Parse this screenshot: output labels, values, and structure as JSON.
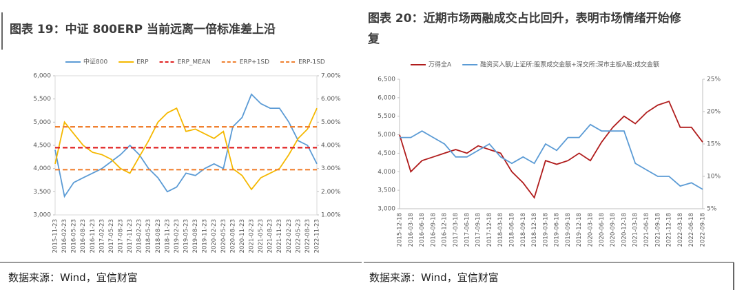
{
  "chart_data": [
    {
      "type": "line",
      "title": "图表 19：中证 800ERP 当前远离一倍标准差上沿",
      "source": "数据来源：Wind，宜信财富",
      "categories": [
        "2015-11-23",
        "2016-02-23",
        "2016-05-23",
        "2016-08-23",
        "2016-11-23",
        "2017-02-23",
        "2017-05-23",
        "2017-08-23",
        "2017-11-23",
        "2018-02-23",
        "2018-05-23",
        "2018-08-23",
        "2018-11-23",
        "2019-02-23",
        "2019-05-23",
        "2019-08-23",
        "2019-11-23",
        "2020-02-23",
        "2020-05-23",
        "2020-08-23",
        "2020-11-23",
        "2021-02-23",
        "2021-05-23",
        "2021-08-23",
        "2021-11-23",
        "2022-02-23",
        "2022-05-23",
        "2022-08-23",
        "2022-11-23"
      ],
      "ylim": [
        3000,
        6000
      ],
      "yticks": [
        {
          "value": 3000,
          "label": "3,000"
        },
        {
          "value": 3500,
          "label": "3,500"
        },
        {
          "value": 4000,
          "label": "4,000"
        },
        {
          "value": 4500,
          "label": "4,500"
        },
        {
          "value": 5000,
          "label": "5,000"
        },
        {
          "value": 5500,
          "label": "5,500"
        },
        {
          "value": 6000,
          "label": "6,000"
        }
      ],
      "y2lim": [
        1,
        7
      ],
      "y2ticks": [
        {
          "value": 1,
          "label": "1.00%"
        },
        {
          "value": 2,
          "label": "2.00%"
        },
        {
          "value": 3,
          "label": "3.00%"
        },
        {
          "value": 4,
          "label": "4.00%"
        },
        {
          "value": 5,
          "label": "5.00%"
        },
        {
          "value": 6,
          "label": "6.00%"
        },
        {
          "value": 7,
          "label": "7.00%"
        }
      ],
      "series": [
        {
          "name": "中证800",
          "color": "#5b9bd5",
          "axis": "y",
          "values": [
            4400,
            3400,
            3700,
            3800,
            3900,
            4000,
            4150,
            4300,
            4500,
            4300,
            4000,
            3800,
            3500,
            3600,
            3900,
            3850,
            4000,
            4100,
            4000,
            4900,
            5100,
            5600,
            5400,
            5300,
            5300,
            5000,
            4600,
            4500,
            4100
          ]
        },
        {
          "name": "ERP",
          "color": "#f5b800",
          "axis": "y2",
          "values": [
            3.2,
            5.0,
            4.5,
            4.0,
            3.7,
            3.6,
            3.4,
            3.0,
            2.8,
            3.5,
            4.2,
            5.0,
            5.4,
            5.6,
            4.6,
            4.7,
            4.5,
            4.3,
            4.6,
            3.0,
            2.7,
            2.1,
            2.6,
            2.8,
            3.0,
            3.6,
            4.3,
            4.7,
            5.6
          ]
        },
        {
          "name": "ERP_MEAN",
          "color": "#e02020",
          "axis": "y2",
          "dash": true,
          "values": [
            3.9,
            3.9,
            3.9,
            3.9,
            3.9,
            3.9,
            3.9,
            3.9,
            3.9,
            3.9,
            3.9,
            3.9,
            3.9,
            3.9,
            3.9,
            3.9,
            3.9,
            3.9,
            3.9,
            3.9,
            3.9,
            3.9,
            3.9,
            3.9,
            3.9,
            3.9,
            3.9,
            3.9,
            3.9
          ]
        },
        {
          "name": "ERP+1SD",
          "color": "#f08030",
          "axis": "y2",
          "dash": true,
          "values": [
            4.8,
            4.8,
            4.8,
            4.8,
            4.8,
            4.8,
            4.8,
            4.8,
            4.8,
            4.8,
            4.8,
            4.8,
            4.8,
            4.8,
            4.8,
            4.8,
            4.8,
            4.8,
            4.8,
            4.8,
            4.8,
            4.8,
            4.8,
            4.8,
            4.8,
            4.8,
            4.8,
            4.8,
            4.8
          ]
        },
        {
          "name": "ERP-1SD",
          "color": "#f08030",
          "axis": "y2",
          "dash": true,
          "values": [
            2.95,
            2.95,
            2.95,
            2.95,
            2.95,
            2.95,
            2.95,
            2.95,
            2.95,
            2.95,
            2.95,
            2.95,
            2.95,
            2.95,
            2.95,
            2.95,
            2.95,
            2.95,
            2.95,
            2.95,
            2.95,
            2.95,
            2.95,
            2.95,
            2.95,
            2.95,
            2.95,
            2.95,
            2.95
          ]
        }
      ]
    },
    {
      "type": "line",
      "title": "图表 20：近期市场两融成交占比回升，表明市场情绪开始修复",
      "source": "数据来源：Wind，宜信财富",
      "categories": [
        "2015-12-18",
        "2016-03-18",
        "2016-06-18",
        "2016-09-18",
        "2016-12-18",
        "2017-03-18",
        "2017-06-18",
        "2017-09-18",
        "2017-12-18",
        "2018-03-18",
        "2018-06-18",
        "2018-09-18",
        "2018-12-18",
        "2019-03-18",
        "2019-06-18",
        "2019-09-18",
        "2019-12-18",
        "2020-03-18",
        "2020-06-18",
        "2020-09-18",
        "2020-12-18",
        "2021-03-18",
        "2021-06-18",
        "2021-09-18",
        "2021-12-18",
        "2022-03-18",
        "2022-06-18",
        "2022-09-18"
      ],
      "ylim": [
        3000,
        6500
      ],
      "yticks": [
        {
          "value": 3000,
          "label": "3,000"
        },
        {
          "value": 3500,
          "label": "3,500"
        },
        {
          "value": 4000,
          "label": "4,000"
        },
        {
          "value": 4500,
          "label": "4,500"
        },
        {
          "value": 5000,
          "label": "5,000"
        },
        {
          "value": 5500,
          "label": "5,500"
        },
        {
          "value": 6000,
          "label": "6,000"
        },
        {
          "value": 6500,
          "label": "6,500"
        }
      ],
      "y2lim": [
        5,
        25
      ],
      "y2ticks": [
        {
          "value": 5,
          "label": "5%"
        },
        {
          "value": 10,
          "label": "10%"
        },
        {
          "value": 15,
          "label": "15%"
        },
        {
          "value": 20,
          "label": "20%"
        },
        {
          "value": 25,
          "label": "25%"
        }
      ],
      "series": [
        {
          "name": "万得全A",
          "color": "#b01c1c",
          "axis": "y",
          "values": [
            5000,
            4000,
            4300,
            4400,
            4500,
            4600,
            4500,
            4700,
            4600,
            4500,
            4000,
            3700,
            3300,
            4300,
            4200,
            4300,
            4500,
            4300,
            4800,
            5200,
            5500,
            5300,
            5600,
            5800,
            5900,
            5200,
            5200,
            4800
          ]
        },
        {
          "name": "融资买入额/上证所:股票成交金额+深交所:深市主板A股:成交金额",
          "color": "#5b9bd5",
          "axis": "y2",
          "values": [
            16,
            16,
            17,
            16,
            15,
            13,
            13,
            14,
            15,
            13,
            12,
            13,
            12,
            15,
            14,
            16,
            16,
            18,
            17,
            17,
            17,
            12,
            11,
            10,
            10,
            8.5,
            9,
            8
          ]
        }
      ]
    }
  ]
}
